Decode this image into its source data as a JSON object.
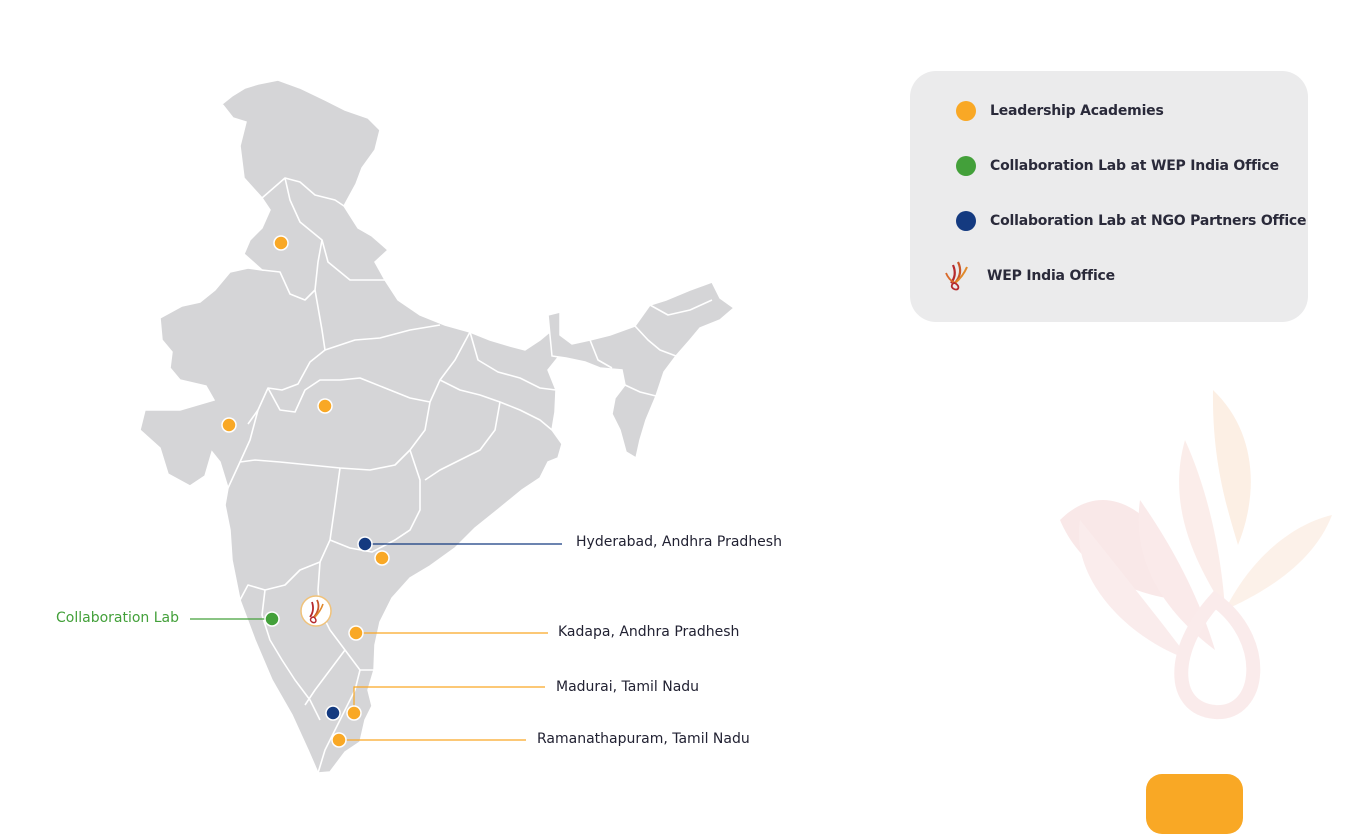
{
  "legend": {
    "items": [
      {
        "label": "Leadership Academies",
        "color": "#f9a825",
        "kind": "dot"
      },
      {
        "label": "Collaboration Lab at WEP India Office",
        "color": "#43a03a",
        "kind": "dot"
      },
      {
        "label": "Collaboration Lab at NGO Partners Office",
        "color": "#143a80",
        "kind": "dot"
      },
      {
        "label": "WEP India Office",
        "color": "#b5292d",
        "kind": "logo"
      }
    ]
  },
  "labels": {
    "collab": "Collaboration Lab",
    "hyderabad": "Hyderabad, Andhra Pradhesh",
    "kadapa": "Kadapa, Andhra Pradhesh",
    "madurai": "Madurai, Tamil Nadu",
    "ramanathapuram": "Ramanathapuram, Tamil Nadu"
  },
  "colors": {
    "map_fill": "#d5d5d7",
    "border": "#ffffff",
    "orange": "#f9a825",
    "green": "#43a03a",
    "navy": "#143a80",
    "accent_tab": "#f9a825"
  }
}
